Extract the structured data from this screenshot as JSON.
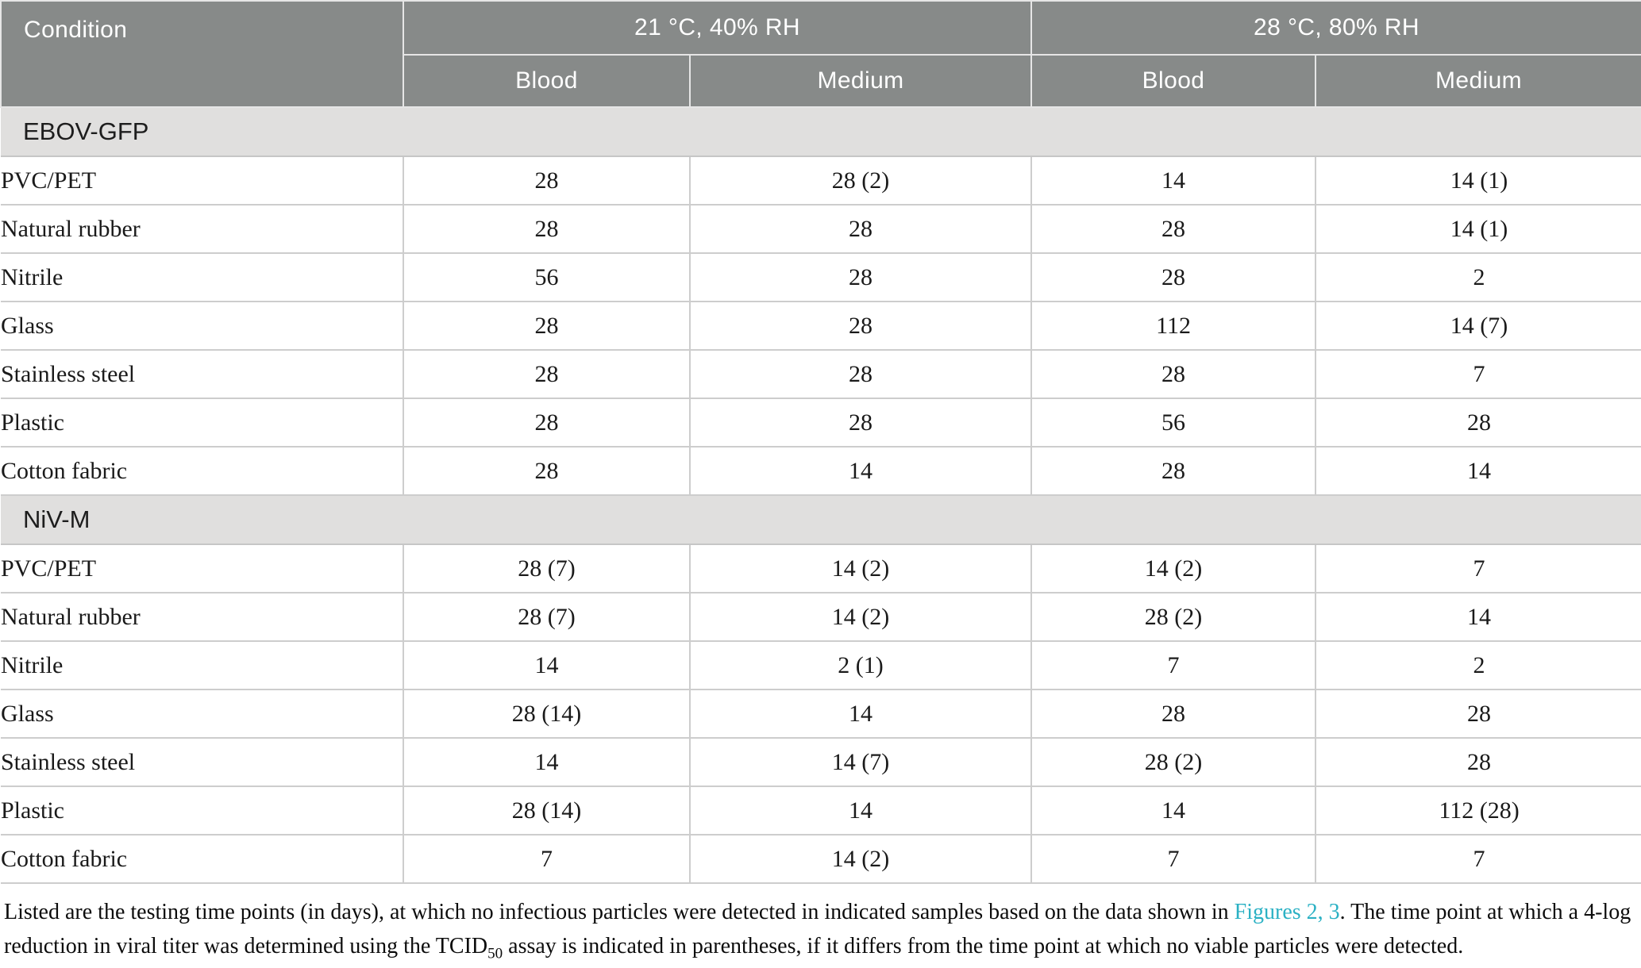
{
  "table": {
    "header": {
      "condition_label": "Condition",
      "groups": [
        {
          "label": "21 °C, 40% RH",
          "subcolumns": [
            "Blood",
            "Medium"
          ]
        },
        {
          "label": "28 °C, 80% RH",
          "subcolumns": [
            "Blood",
            "Medium"
          ]
        }
      ]
    },
    "sections": [
      {
        "label": "EBOV-GFP",
        "rows": [
          {
            "condition": "PVC/PET",
            "values": [
              "28",
              "28 (2)",
              "14",
              "14 (1)"
            ]
          },
          {
            "condition": "Natural rubber",
            "values": [
              "28",
              "28",
              "28",
              "14 (1)"
            ]
          },
          {
            "condition": "Nitrile",
            "values": [
              "56",
              "28",
              "28",
              "2"
            ]
          },
          {
            "condition": "Glass",
            "values": [
              "28",
              "28",
              "112",
              "14 (7)"
            ]
          },
          {
            "condition": "Stainless steel",
            "values": [
              "28",
              "28",
              "28",
              "7"
            ]
          },
          {
            "condition": "Plastic",
            "values": [
              "28",
              "28",
              "56",
              "28"
            ]
          },
          {
            "condition": "Cotton fabric",
            "values": [
              "28",
              "14",
              "28",
              "14"
            ]
          }
        ]
      },
      {
        "label": "NiV-M",
        "rows": [
          {
            "condition": "PVC/PET",
            "values": [
              "28 (7)",
              "14 (2)",
              "14 (2)",
              "7"
            ]
          },
          {
            "condition": "Natural rubber",
            "values": [
              "28 (7)",
              "14 (2)",
              "28 (2)",
              "14"
            ]
          },
          {
            "condition": "Nitrile",
            "values": [
              "14",
              "2 (1)",
              "7",
              "2"
            ]
          },
          {
            "condition": "Glass",
            "values": [
              "28 (14)",
              "14",
              "28",
              "28"
            ]
          },
          {
            "condition": "Stainless steel",
            "values": [
              "14",
              "14 (7)",
              "28 (2)",
              "28"
            ]
          },
          {
            "condition": "Plastic",
            "values": [
              "28 (14)",
              "14",
              "14",
              "112 (28)"
            ]
          },
          {
            "condition": "Cotton fabric",
            "values": [
              "7",
              "14 (2)",
              "7",
              "7"
            ]
          }
        ]
      }
    ]
  },
  "footnote": {
    "before_link": "Listed are the testing time points (in days), at which no infectious particles were detected in indicated samples based on the data shown in ",
    "link_text": "Figures 2, 3",
    "after_link": ". The time point at which a 4-log reduction in viral titer was determined using the TCID",
    "subscript": "50",
    "after_subscript": " assay is indicated in parentheses, if it differs from the time point at which no viable particles were detected."
  },
  "colors": {
    "header_bg": "#878a89",
    "section_bg": "#e0dfde",
    "link_teal": "#2bb1c4",
    "row_border": "#cdcdcd"
  }
}
